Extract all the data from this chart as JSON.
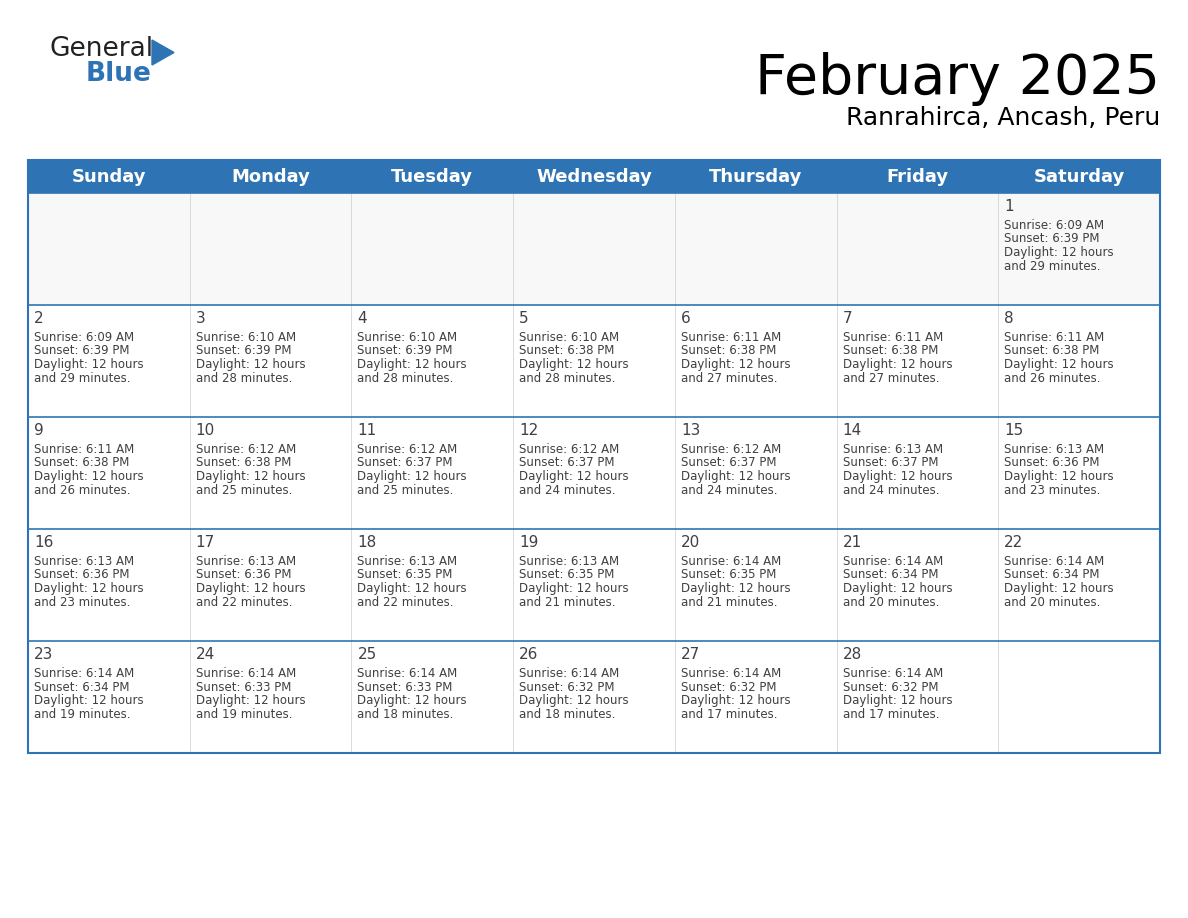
{
  "title": "February 2025",
  "subtitle": "Ranrahirca, Ancash, Peru",
  "header_bg_color": "#2E74B5",
  "header_text_color": "#FFFFFF",
  "border_color": "#2E74B5",
  "cell_line_color": "#AAAAAA",
  "days_of_week": [
    "Sunday",
    "Monday",
    "Tuesday",
    "Wednesday",
    "Thursday",
    "Friday",
    "Saturday"
  ],
  "calendar_data": [
    [
      null,
      null,
      null,
      null,
      null,
      null,
      {
        "day": "1",
        "sunrise": "6:09 AM",
        "sunset": "6:39 PM",
        "daylight_line1": "12 hours",
        "daylight_line2": "and 29 minutes."
      }
    ],
    [
      {
        "day": "2",
        "sunrise": "6:09 AM",
        "sunset": "6:39 PM",
        "daylight_line1": "12 hours",
        "daylight_line2": "and 29 minutes."
      },
      {
        "day": "3",
        "sunrise": "6:10 AM",
        "sunset": "6:39 PM",
        "daylight_line1": "12 hours",
        "daylight_line2": "and 28 minutes."
      },
      {
        "day": "4",
        "sunrise": "6:10 AM",
        "sunset": "6:39 PM",
        "daylight_line1": "12 hours",
        "daylight_line2": "and 28 minutes."
      },
      {
        "day": "5",
        "sunrise": "6:10 AM",
        "sunset": "6:38 PM",
        "daylight_line1": "12 hours",
        "daylight_line2": "and 28 minutes."
      },
      {
        "day": "6",
        "sunrise": "6:11 AM",
        "sunset": "6:38 PM",
        "daylight_line1": "12 hours",
        "daylight_line2": "and 27 minutes."
      },
      {
        "day": "7",
        "sunrise": "6:11 AM",
        "sunset": "6:38 PM",
        "daylight_line1": "12 hours",
        "daylight_line2": "and 27 minutes."
      },
      {
        "day": "8",
        "sunrise": "6:11 AM",
        "sunset": "6:38 PM",
        "daylight_line1": "12 hours",
        "daylight_line2": "and 26 minutes."
      }
    ],
    [
      {
        "day": "9",
        "sunrise": "6:11 AM",
        "sunset": "6:38 PM",
        "daylight_line1": "12 hours",
        "daylight_line2": "and 26 minutes."
      },
      {
        "day": "10",
        "sunrise": "6:12 AM",
        "sunset": "6:38 PM",
        "daylight_line1": "12 hours",
        "daylight_line2": "and 25 minutes."
      },
      {
        "day": "11",
        "sunrise": "6:12 AM",
        "sunset": "6:37 PM",
        "daylight_line1": "12 hours",
        "daylight_line2": "and 25 minutes."
      },
      {
        "day": "12",
        "sunrise": "6:12 AM",
        "sunset": "6:37 PM",
        "daylight_line1": "12 hours",
        "daylight_line2": "and 24 minutes."
      },
      {
        "day": "13",
        "sunrise": "6:12 AM",
        "sunset": "6:37 PM",
        "daylight_line1": "12 hours",
        "daylight_line2": "and 24 minutes."
      },
      {
        "day": "14",
        "sunrise": "6:13 AM",
        "sunset": "6:37 PM",
        "daylight_line1": "12 hours",
        "daylight_line2": "and 24 minutes."
      },
      {
        "day": "15",
        "sunrise": "6:13 AM",
        "sunset": "6:36 PM",
        "daylight_line1": "12 hours",
        "daylight_line2": "and 23 minutes."
      }
    ],
    [
      {
        "day": "16",
        "sunrise": "6:13 AM",
        "sunset": "6:36 PM",
        "daylight_line1": "12 hours",
        "daylight_line2": "and 23 minutes."
      },
      {
        "day": "17",
        "sunrise": "6:13 AM",
        "sunset": "6:36 PM",
        "daylight_line1": "12 hours",
        "daylight_line2": "and 22 minutes."
      },
      {
        "day": "18",
        "sunrise": "6:13 AM",
        "sunset": "6:35 PM",
        "daylight_line1": "12 hours",
        "daylight_line2": "and 22 minutes."
      },
      {
        "day": "19",
        "sunrise": "6:13 AM",
        "sunset": "6:35 PM",
        "daylight_line1": "12 hours",
        "daylight_line2": "and 21 minutes."
      },
      {
        "day": "20",
        "sunrise": "6:14 AM",
        "sunset": "6:35 PM",
        "daylight_line1": "12 hours",
        "daylight_line2": "and 21 minutes."
      },
      {
        "day": "21",
        "sunrise": "6:14 AM",
        "sunset": "6:34 PM",
        "daylight_line1": "12 hours",
        "daylight_line2": "and 20 minutes."
      },
      {
        "day": "22",
        "sunrise": "6:14 AM",
        "sunset": "6:34 PM",
        "daylight_line1": "12 hours",
        "daylight_line2": "and 20 minutes."
      }
    ],
    [
      {
        "day": "23",
        "sunrise": "6:14 AM",
        "sunset": "6:34 PM",
        "daylight_line1": "12 hours",
        "daylight_line2": "and 19 minutes."
      },
      {
        "day": "24",
        "sunrise": "6:14 AM",
        "sunset": "6:33 PM",
        "daylight_line1": "12 hours",
        "daylight_line2": "and 19 minutes."
      },
      {
        "day": "25",
        "sunrise": "6:14 AM",
        "sunset": "6:33 PM",
        "daylight_line1": "12 hours",
        "daylight_line2": "and 18 minutes."
      },
      {
        "day": "26",
        "sunrise": "6:14 AM",
        "sunset": "6:32 PM",
        "daylight_line1": "12 hours",
        "daylight_line2": "and 18 minutes."
      },
      {
        "day": "27",
        "sunrise": "6:14 AM",
        "sunset": "6:32 PM",
        "daylight_line1": "12 hours",
        "daylight_line2": "and 17 minutes."
      },
      {
        "day": "28",
        "sunrise": "6:14 AM",
        "sunset": "6:32 PM",
        "daylight_line1": "12 hours",
        "daylight_line2": "and 17 minutes."
      },
      null
    ]
  ],
  "fig_width": 11.88,
  "fig_height": 9.18,
  "dpi": 100,
  "title_fontsize": 40,
  "subtitle_fontsize": 18,
  "dow_fontsize": 13,
  "day_num_fontsize": 11,
  "cell_text_fontsize": 8.5,
  "logo_general_fontsize": 19,
  "logo_blue_fontsize": 19,
  "logo_color_general": "#222222",
  "logo_color_blue": "#2E74B5",
  "logo_triangle_color": "#2E74B5",
  "text_color": "#404040"
}
